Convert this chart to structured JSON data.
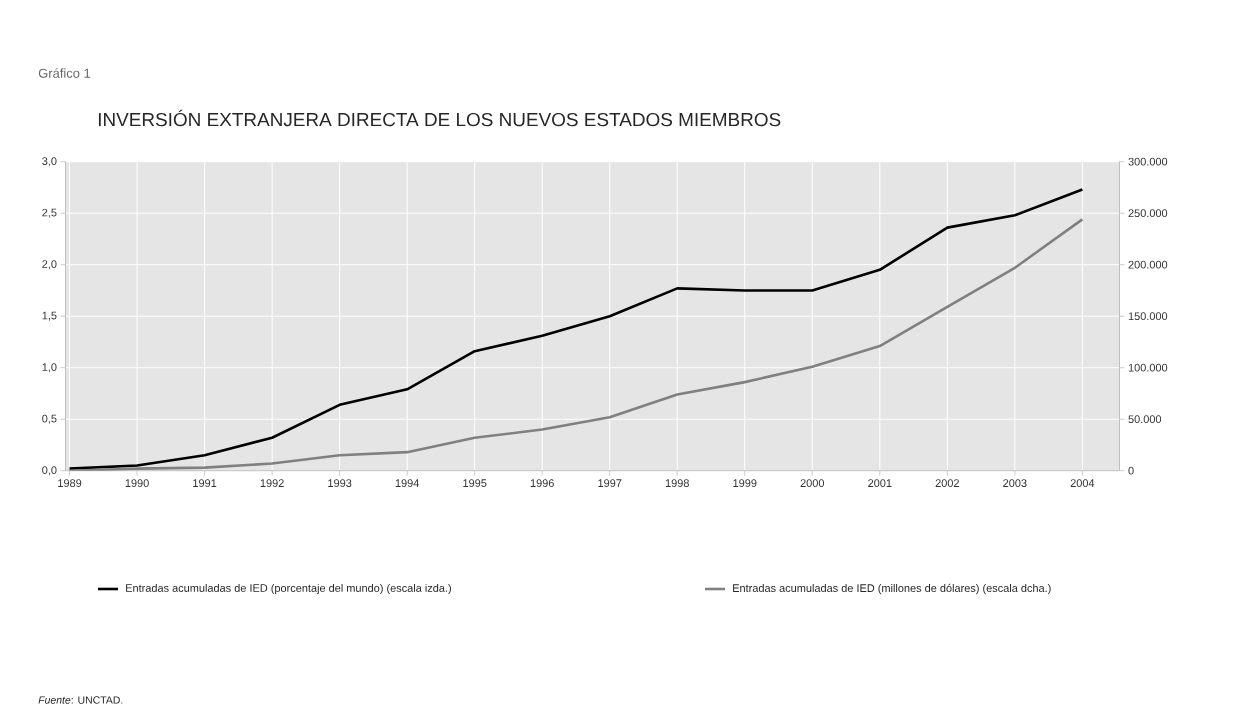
{
  "chart_data": {
    "type": "line",
    "title": "INVERSIÓN EXTRANJERA DIRECTA DE LOS NUEVOS ESTADOS MIEMBROS",
    "annotations": [
      "Gráfico 1",
      "*Fuente*:  UNCTAD."
    ],
    "categories": [
      "1989",
      "1990",
      "1991",
      "1992",
      "1993",
      "1994",
      "1995",
      "1996",
      "1997",
      "1998",
      "1999",
      "2000",
      "2001",
      "2002",
      "2003",
      "2004"
    ],
    "series": [
      {
        "name": "Entradas acumuladas de IED (porcentaje del mundo) (escala izda.)",
        "color": "#000000",
        "values": [
          0.02,
          0.05,
          0.15,
          0.32,
          0.64,
          0.79,
          1.16,
          1.31,
          1.5,
          1.77,
          1.75,
          1.75,
          1.95,
          2.36,
          2.48,
          2.73
        ]
      },
      {
        "name": "Entradas acumuladas de IED (millones de dólares) (escala dcha.)",
        "color": "#808080",
        "axis": "y2",
        "values": [
          0,
          2000,
          3000,
          7000,
          15000,
          18000,
          32000,
          40000,
          52000,
          74000,
          86000,
          101000,
          121000,
          159000,
          197000,
          244000
        ]
      }
    ],
    "ylim": [
      0,
      3
    ],
    "yticks": [
      {
        "value": 0,
        "label": "0,0"
      },
      {
        "value": 0.5,
        "label": "0,5"
      },
      {
        "value": 1,
        "label": "1,0"
      },
      {
        "value": 1.5,
        "label": "1,5"
      },
      {
        "value": 2,
        "label": "2,0"
      },
      {
        "value": 2.5,
        "label": "2,5"
      },
      {
        "value": 3,
        "label": "3,0"
      }
    ],
    "y2lim": [
      0,
      300000
    ],
    "y2ticks": [
      0,
      {
        "value": 50000,
        "label": "50.000"
      },
      {
        "value": 100000,
        "label": "100.000"
      },
      {
        "value": 150000,
        "label": "150.000"
      },
      {
        "value": 200000,
        "label": "200.000"
      },
      {
        "value": 250000,
        "label": "250.000"
      },
      {
        "value": 300000,
        "label": "300.000"
      }
    ],
    "grid": true,
    "legend": "bottom",
    "marker": "none",
    "line_style": "solid"
  }
}
